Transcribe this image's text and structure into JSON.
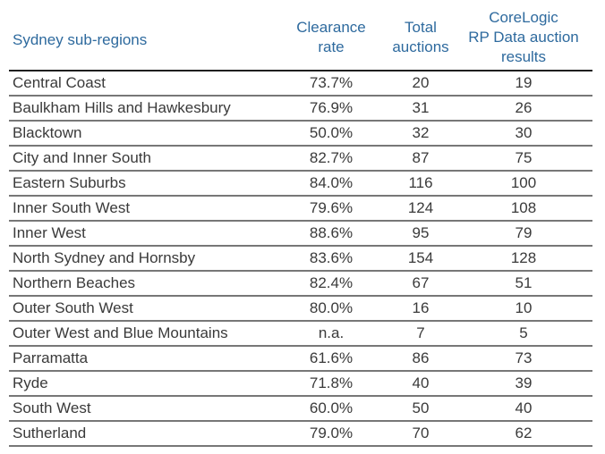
{
  "chart_data": {
    "type": "table",
    "columns": [
      "Sydney sub-regions",
      "Clearance rate",
      "Total auctions",
      "CoreLogic RP Data auction results"
    ],
    "header": {
      "region": "Sydney sub-regions",
      "clearance_line1": "Clearance",
      "clearance_line2": "rate",
      "total_line1": "Total",
      "total_line2": "auctions",
      "corelogic_line1": "CoreLogic",
      "corelogic_line2": "RP Data auction",
      "corelogic_line3": "results"
    },
    "rows": [
      {
        "region": "Central Coast",
        "clearance_rate": "73.7%",
        "total_auctions": "20",
        "results": "19"
      },
      {
        "region": "Baulkham Hills and Hawkesbury",
        "clearance_rate": "76.9%",
        "total_auctions": "31",
        "results": "26"
      },
      {
        "region": "Blacktown",
        "clearance_rate": "50.0%",
        "total_auctions": "32",
        "results": "30"
      },
      {
        "region": "City and Inner South",
        "clearance_rate": "82.7%",
        "total_auctions": "87",
        "results": "75"
      },
      {
        "region": "Eastern Suburbs",
        "clearance_rate": "84.0%",
        "total_auctions": "116",
        "results": "100"
      },
      {
        "region": "Inner South West",
        "clearance_rate": "79.6%",
        "total_auctions": "124",
        "results": "108"
      },
      {
        "region": "Inner West",
        "clearance_rate": "88.6%",
        "total_auctions": "95",
        "results": "79"
      },
      {
        "region": "North Sydney and Hornsby",
        "clearance_rate": "83.6%",
        "total_auctions": "154",
        "results": "128"
      },
      {
        "region": "Northern Beaches",
        "clearance_rate": "82.4%",
        "total_auctions": "67",
        "results": "51"
      },
      {
        "region": "Outer South West",
        "clearance_rate": "80.0%",
        "total_auctions": "16",
        "results": "10"
      },
      {
        "region": "Outer West and Blue Mountains",
        "clearance_rate": "n.a.",
        "total_auctions": "7",
        "results": "5"
      },
      {
        "region": "Parramatta",
        "clearance_rate": "61.6%",
        "total_auctions": "86",
        "results": "73"
      },
      {
        "region": "Ryde",
        "clearance_rate": "71.8%",
        "total_auctions": "40",
        "results": "39"
      },
      {
        "region": "South West",
        "clearance_rate": "60.0%",
        "total_auctions": "50",
        "results": "40"
      },
      {
        "region": "Sutherland",
        "clearance_rate": "79.0%",
        "total_auctions": "70",
        "results": "62"
      }
    ]
  },
  "colors": {
    "header_text": "#2e6a9e",
    "body_text": "#3a3a3a",
    "header_rule": "#1f1f1f",
    "row_rule": "#777777"
  }
}
